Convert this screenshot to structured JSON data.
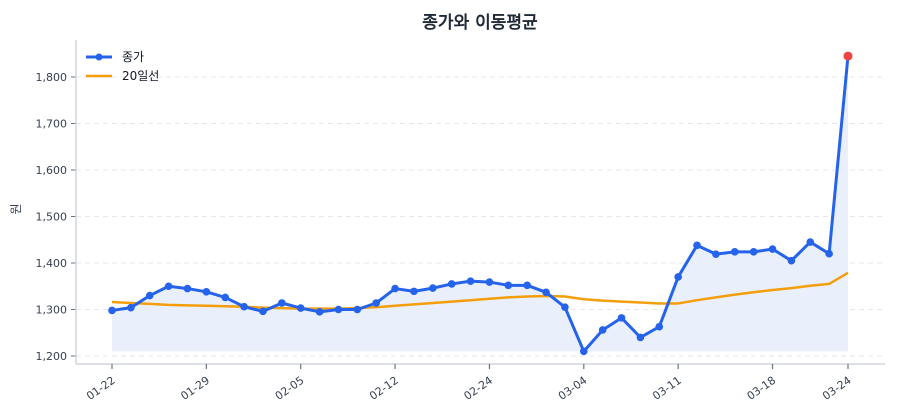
{
  "chart_data": {
    "type": "line",
    "title": "종가와 이동평균",
    "xlabel": "",
    "ylabel": "원",
    "ylim": [
      1185,
      1880
    ],
    "yticks": [
      1200,
      1300,
      1400,
      1500,
      1600,
      1700,
      1800
    ],
    "ytick_labels": [
      "1,200",
      "1,300",
      "1,400",
      "1,500",
      "1,600",
      "1,700",
      "1,800"
    ],
    "xticks": [
      {
        "index": 0,
        "label": "01-22"
      },
      {
        "index": 5,
        "label": "01-29"
      },
      {
        "index": 10,
        "label": "02-05"
      },
      {
        "index": 15,
        "label": "02-12"
      },
      {
        "index": 20,
        "label": "02-24"
      },
      {
        "index": 25,
        "label": "03-04"
      },
      {
        "index": 30,
        "label": "03-11"
      },
      {
        "index": 35,
        "label": "03-18"
      },
      {
        "index": 39,
        "label": "03-24"
      }
    ],
    "grid": true,
    "legend_position": "upper left",
    "series": [
      {
        "name": "종가",
        "color": "#2563eb",
        "marker": "circle",
        "fill_color": "#e8eefb",
        "values": [
          1298,
          1304,
          1330,
          1350,
          1345,
          1338,
          1326,
          1306,
          1296,
          1314,
          1303,
          1295,
          1300,
          1300,
          1314,
          1345,
          1339,
          1346,
          1355,
          1361,
          1359,
          1352,
          1352,
          1337,
          1305,
          1210,
          1256,
          1282,
          1240,
          1263,
          1370,
          1438,
          1419,
          1424,
          1424,
          1430,
          1405,
          1445,
          1420,
          1845
        ],
        "highlight_last": {
          "color": "#ef4444"
        }
      },
      {
        "name": "20일선",
        "color": "#f59e0b",
        "marker": "none",
        "values": [
          1316,
          1314,
          1312,
          1310,
          1309,
          1308,
          1307,
          1306,
          1304,
          1303,
          1302,
          1302,
          1302,
          1303,
          1305,
          1308,
          1311,
          1314,
          1317,
          1320,
          1323,
          1326,
          1328,
          1329,
          1328,
          1322,
          1319,
          1317,
          1315,
          1313,
          1313,
          1320,
          1326,
          1332,
          1337,
          1342,
          1346,
          1351,
          1355,
          1379
        ]
      }
    ]
  },
  "colors": {
    "grid": "#e5e7eb",
    "spine": "#d1d5db",
    "tick": "#6b7280"
  }
}
